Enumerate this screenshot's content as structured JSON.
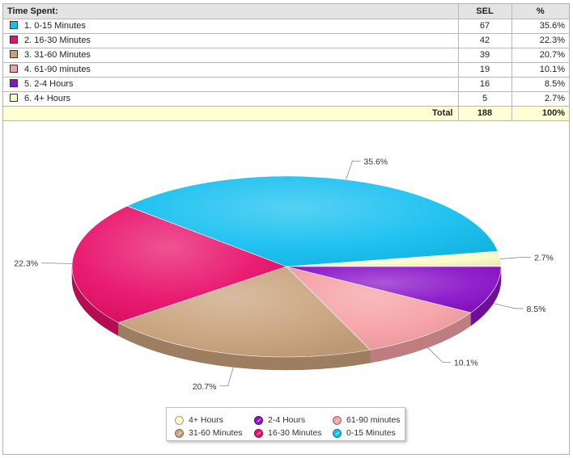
{
  "table": {
    "header": {
      "label": "Time Spent:",
      "col_sel": "SEL",
      "col_pct": "%"
    },
    "rows": [
      {
        "label": "1. 0-15 Minutes",
        "sel": "67",
        "pct": "35.6%",
        "color": "#15bff0"
      },
      {
        "label": "2. 16-30 Minutes",
        "sel": "42",
        "pct": "22.3%",
        "color": "#e8106a"
      },
      {
        "label": "3. 31-60 Minutes",
        "sel": "39",
        "pct": "20.7%",
        "color": "#c9a27c"
      },
      {
        "label": "4. 61-90 minutes",
        "sel": "19",
        "pct": "10.1%",
        "color": "#f5a0a4"
      },
      {
        "label": "5. 2-4 Hours",
        "sel": "16",
        "pct": "8.5%",
        "color": "#8a14c8"
      },
      {
        "label": "6. 4+ Hours",
        "sel": "5",
        "pct": "2.7%",
        "color": "#fbfbc8"
      }
    ],
    "total": {
      "label": "Total",
      "sel": "188",
      "pct": "100%"
    }
  },
  "chart_data": {
    "type": "pie",
    "categories": [
      "0-15 Minutes",
      "16-30 Minutes",
      "31-60 Minutes",
      "61-90 minutes",
      "2-4 Hours",
      "4+ Hours"
    ],
    "values": [
      35.6,
      22.3,
      20.7,
      10.1,
      8.5,
      2.7
    ],
    "data_labels": [
      "35.6%",
      "22.3%",
      "20.7%",
      "10.1%",
      "8.5%",
      "2.7%"
    ],
    "colors": [
      "#15bff0",
      "#e8106a",
      "#c9a27c",
      "#f5a0a4",
      "#8a14c8",
      "#fbfbc8"
    ],
    "legend": [
      "4+ Hours",
      "2-4 Hours",
      "61-90 minutes",
      "31-60 Minutes",
      "16-30 Minutes",
      "0-15 Minutes"
    ],
    "legend_placement": "bottom"
  }
}
